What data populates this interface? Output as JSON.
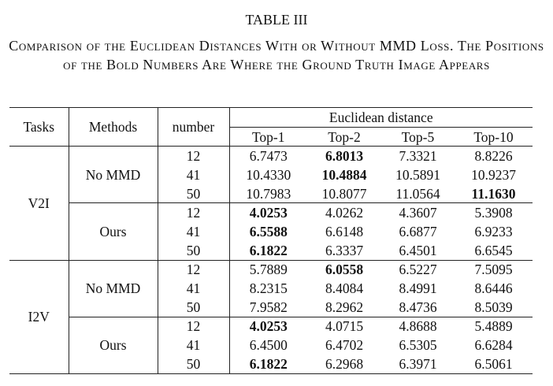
{
  "header": {
    "label": "TABLE III",
    "caption": "Comparison of the Euclidean Distances With or Without MMD Loss. The Positions of the Bold Numbers Are Where the Ground Truth Image Appears"
  },
  "table": {
    "columns": {
      "tasks": "Tasks",
      "methods": "Methods",
      "number": "number",
      "group": "Euclidean distance",
      "tops": [
        "Top-1",
        "Top-2",
        "Top-5",
        "Top-10"
      ]
    },
    "tasks": [
      {
        "name": "V2I",
        "methods": [
          {
            "name": "No MMD",
            "rows": [
              {
                "number": "12",
                "values": [
                  {
                    "text": "6.7473"
                  },
                  {
                    "text": "6.8013",
                    "bold": true
                  },
                  {
                    "text": "7.3321"
                  },
                  {
                    "text": "8.8226"
                  }
                ]
              },
              {
                "number": "41",
                "values": [
                  {
                    "text": "10.4330"
                  },
                  {
                    "text": "10.4884",
                    "bold": true
                  },
                  {
                    "text": "10.5891"
                  },
                  {
                    "text": "10.9237"
                  }
                ]
              },
              {
                "number": "50",
                "values": [
                  {
                    "text": "10.7983"
                  },
                  {
                    "text": "10.8077"
                  },
                  {
                    "text": "11.0564"
                  },
                  {
                    "text": "11.1630",
                    "bold": true
                  }
                ]
              }
            ]
          },
          {
            "name": "Ours",
            "rows": [
              {
                "number": "12",
                "values": [
                  {
                    "text": "4.0253",
                    "bold": true
                  },
                  {
                    "text": "4.0262"
                  },
                  {
                    "text": "4.3607"
                  },
                  {
                    "text": "5.3908"
                  }
                ]
              },
              {
                "number": "41",
                "values": [
                  {
                    "text": "6.5588",
                    "bold": true
                  },
                  {
                    "text": "6.6148"
                  },
                  {
                    "text": "6.6877"
                  },
                  {
                    "text": "6.9233"
                  }
                ]
              },
              {
                "number": "50",
                "values": [
                  {
                    "text": "6.1822",
                    "bold": true
                  },
                  {
                    "text": "6.3337"
                  },
                  {
                    "text": "6.4501"
                  },
                  {
                    "text": "6.6545"
                  }
                ]
              }
            ]
          }
        ]
      },
      {
        "name": "I2V",
        "methods": [
          {
            "name": "No MMD",
            "rows": [
              {
                "number": "12",
                "values": [
                  {
                    "text": "5.7889"
                  },
                  {
                    "text": "6.0558",
                    "bold": true
                  },
                  {
                    "text": "6.5227"
                  },
                  {
                    "text": "7.5095"
                  }
                ]
              },
              {
                "number": "41",
                "values": [
                  {
                    "text": "8.2315"
                  },
                  {
                    "text": "8.4084"
                  },
                  {
                    "text": "8.4991"
                  },
                  {
                    "text": "8.6446"
                  }
                ]
              },
              {
                "number": "50",
                "values": [
                  {
                    "text": "7.9582"
                  },
                  {
                    "text": "8.2962"
                  },
                  {
                    "text": "8.4736"
                  },
                  {
                    "text": "8.5039"
                  }
                ]
              }
            ]
          },
          {
            "name": "Ours",
            "rows": [
              {
                "number": "12",
                "values": [
                  {
                    "text": "4.0253",
                    "bold": true
                  },
                  {
                    "text": "4.0715"
                  },
                  {
                    "text": "4.8688"
                  },
                  {
                    "text": "5.4889"
                  }
                ]
              },
              {
                "number": "41",
                "values": [
                  {
                    "text": "6.4500"
                  },
                  {
                    "text": "6.4702"
                  },
                  {
                    "text": "6.5305"
                  },
                  {
                    "text": "6.6284"
                  }
                ]
              },
              {
                "number": "50",
                "values": [
                  {
                    "text": "6.1822",
                    "bold": true
                  },
                  {
                    "text": "6.2968"
                  },
                  {
                    "text": "6.3971"
                  },
                  {
                    "text": "6.5061"
                  }
                ]
              }
            ]
          }
        ]
      }
    ]
  }
}
